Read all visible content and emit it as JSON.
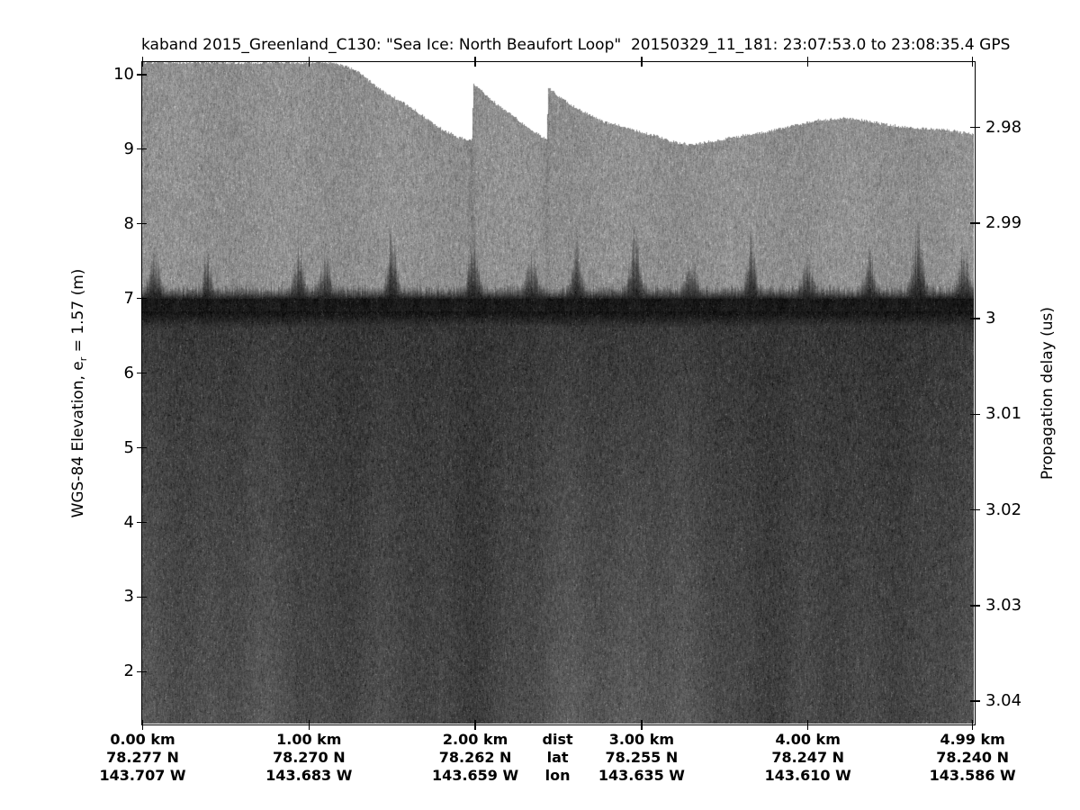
{
  "chart_data": {
    "type": "heatmap",
    "title": "kaband 2015_Greenland_C130: \"Sea Ice: North Beaufort Loop\"  20150329_11_181: 23:07:53.0 to 23:08:35.4 GPS",
    "left_axis": {
      "label_prefix": "WGS-84 Elevation, e",
      "label_sub": "r",
      "label_suffix": " = 1.57 (m)",
      "ticks": [
        10,
        9,
        8,
        7,
        6,
        5,
        4,
        3,
        2
      ],
      "range": [
        1.3,
        10.16
      ]
    },
    "right_axis": {
      "label": "Propagation delay (us)",
      "ticks": [
        "2.98",
        "2.99",
        "3",
        "3.01",
        "3.02",
        "3.03",
        "3.04"
      ],
      "range": [
        2.9732,
        3.0424
      ]
    },
    "x_axis": {
      "row_labels": [
        "dist",
        "lat",
        "lon"
      ],
      "label_column_km": 2.495,
      "range_km": [
        0,
        5.0
      ],
      "columns": [
        {
          "km": 0.0,
          "dist": "0.00 km",
          "lat": "78.277 N",
          "lon": "143.707 W"
        },
        {
          "km": 1.0,
          "dist": "1.00 km",
          "lat": "78.270 N",
          "lon": "143.683 W"
        },
        {
          "km": 2.0,
          "dist": "2.00 km",
          "lat": "78.262 N",
          "lon": "143.659 W"
        },
        {
          "km": 3.0,
          "dist": "3.00 km",
          "lat": "78.255 N",
          "lon": "143.635 W"
        },
        {
          "km": 4.0,
          "dist": "4.00 km",
          "lat": "78.247 N",
          "lon": "143.610 W"
        },
        {
          "km": 4.99,
          "dist": "4.99 km",
          "lat": "78.240 N",
          "lon": "143.586 W"
        }
      ]
    },
    "echogram": {
      "surface_elevation_m": 6.92,
      "data_top_boundary": [
        [
          0.0,
          10.16
        ],
        [
          1.15,
          10.16
        ],
        [
          1.29,
          10.05
        ],
        [
          1.44,
          9.78
        ],
        [
          1.56,
          9.63
        ],
        [
          1.66,
          9.49
        ],
        [
          1.77,
          9.3
        ],
        [
          1.88,
          9.18
        ],
        [
          1.98,
          9.1
        ],
        [
          1.99,
          9.87
        ],
        [
          2.13,
          9.6
        ],
        [
          2.27,
          9.37
        ],
        [
          2.43,
          9.12
        ],
        [
          2.44,
          9.83
        ],
        [
          2.51,
          9.69
        ],
        [
          2.63,
          9.52
        ],
        [
          2.77,
          9.37
        ],
        [
          2.91,
          9.29
        ],
        [
          3.05,
          9.2
        ],
        [
          3.18,
          9.11
        ],
        [
          3.29,
          9.06
        ],
        [
          3.42,
          9.1
        ],
        [
          3.58,
          9.17
        ],
        [
          3.75,
          9.23
        ],
        [
          3.91,
          9.31
        ],
        [
          4.07,
          9.39
        ],
        [
          4.23,
          9.42
        ],
        [
          4.37,
          9.37
        ],
        [
          4.56,
          9.3
        ],
        [
          4.72,
          9.27
        ],
        [
          4.85,
          9.25
        ],
        [
          5.0,
          9.2
        ]
      ],
      "discontinuities_km": [
        1.98,
        2.43
      ],
      "ridge_spikes": [
        [
          0.07,
          0.42
        ],
        [
          0.39,
          0.48
        ],
        [
          0.94,
          0.54
        ],
        [
          1.1,
          0.36
        ],
        [
          1.5,
          0.66
        ],
        [
          1.99,
          0.6
        ],
        [
          2.34,
          0.42
        ],
        [
          2.61,
          0.54
        ],
        [
          2.96,
          0.66
        ],
        [
          3.3,
          0.36
        ],
        [
          3.66,
          0.6
        ],
        [
          4.0,
          0.36
        ],
        [
          4.37,
          0.54
        ],
        [
          4.66,
          0.66
        ],
        [
          4.94,
          0.54
        ]
      ],
      "bright_columns_km": [
        1.35,
        2.66,
        2.95,
        4.45
      ],
      "grays": {
        "background": "#ffffff",
        "noise": "#8f8f8f",
        "surface_band": "#131313",
        "subsurface": "#373737",
        "deep": "#4b4b4b"
      }
    }
  }
}
